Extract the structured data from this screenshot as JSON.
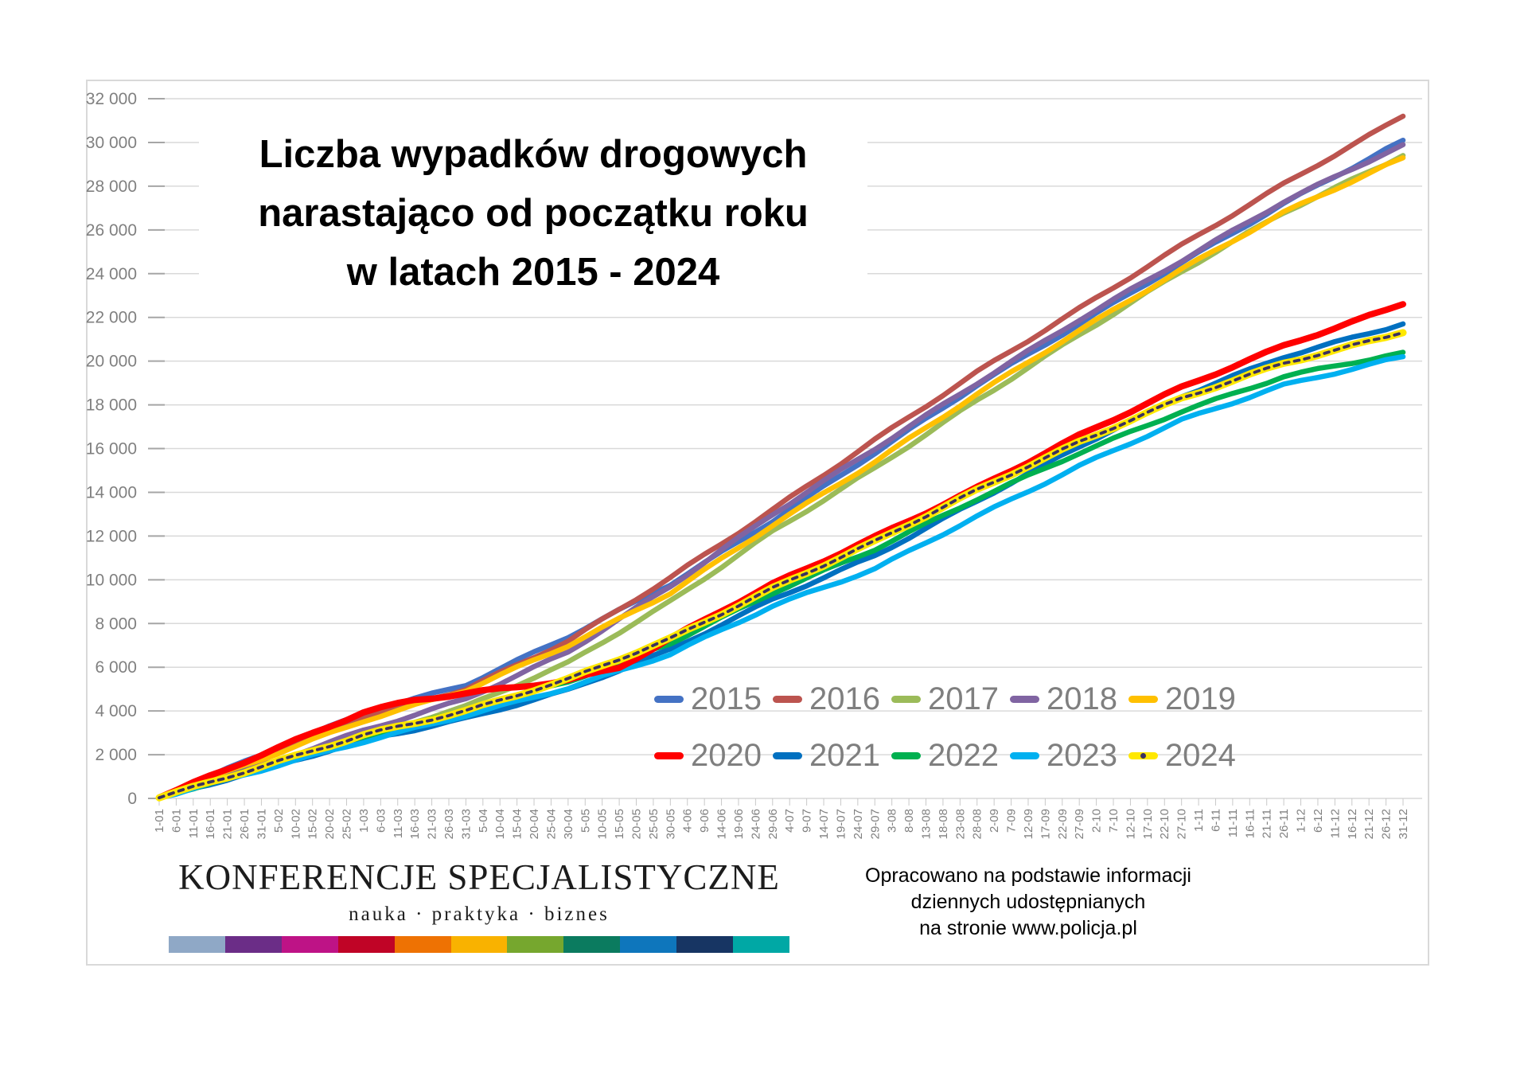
{
  "title": {
    "lines": [
      "Liczba wypadków drogowych",
      "narastająco od początku roku",
      "w latach 2015 - 2024"
    ]
  },
  "footer": {
    "logo": {
      "name": "KONFERENCJE SPECJALISTYCZNE",
      "tagline": "nauka · praktyka · biznes",
      "stripe_colors": [
        "#8FA8C6",
        "#6B2D87",
        "#BE1386",
        "#C00426",
        "#EE7203",
        "#F9B200",
        "#76A72E",
        "#0B7B5F",
        "#0E76BC",
        "#173563",
        "#00A8A5"
      ]
    },
    "attribution": {
      "lines": [
        "Opracowano na podstawie informacji",
        "dziennych udostępnianych",
        "na stronie www.policja.pl"
      ]
    }
  },
  "colors": {
    "grid": "#D9D9D9",
    "tick_stub": "#A6A6A6",
    "axis_text": "#808080",
    "legend_text": "#7F7F7F",
    "frame": "#D9D9D9"
  },
  "chart_data": {
    "type": "line",
    "title": "Liczba wypadków drogowych narastająco od początku roku w latach 2015 - 2024",
    "xlabel": "",
    "ylabel": "",
    "ylim": [
      0,
      32000
    ],
    "ytick_step": 2000,
    "y_tick_labels": [
      "0",
      "2 000",
      "4 000",
      "6 000",
      "8 000",
      "10 000",
      "12 000",
      "14 000",
      "16 000",
      "18 000",
      "20 000",
      "22 000",
      "24 000",
      "26 000",
      "28 000",
      "30 000",
      "32 000"
    ],
    "grid": "horizontal",
    "x_label_rotation": -90,
    "legend_position": "inside bottom-right, two rows",
    "categories": [
      "1-01",
      "6-01",
      "11-01",
      "16-01",
      "21-01",
      "26-01",
      "31-01",
      "5-02",
      "10-02",
      "15-02",
      "20-02",
      "25-02",
      "1-03",
      "6-03",
      "11-03",
      "16-03",
      "21-03",
      "26-03",
      "31-03",
      "5-04",
      "10-04",
      "15-04",
      "20-04",
      "25-04",
      "30-04",
      "5-05",
      "10-05",
      "15-05",
      "20-05",
      "25-05",
      "30-05",
      "4-06",
      "9-06",
      "14-06",
      "19-06",
      "24-06",
      "29-06",
      "4-07",
      "9-07",
      "14-07",
      "19-07",
      "24-07",
      "29-07",
      "3-08",
      "8-08",
      "13-08",
      "18-08",
      "23-08",
      "28-08",
      "2-09",
      "7-09",
      "12-09",
      "17-09",
      "22-09",
      "27-09",
      "2-10",
      "7-10",
      "12-10",
      "17-10",
      "22-10",
      "27-10",
      "1-11",
      "6-11",
      "11-11",
      "16-11",
      "21-11",
      "26-11",
      "1-12",
      "6-12",
      "11-12",
      "16-12",
      "21-12",
      "26-12",
      "31-12"
    ],
    "note": "anchor_points are [category_index, cumulative_value] pairs read off the chart; values between anchors are linear on the plot",
    "series": [
      {
        "name": "2015",
        "color": "#4472C4",
        "width": 6.5,
        "anchor_points": [
          [
            0,
            30
          ],
          [
            6,
            2000
          ],
          [
            12,
            3900
          ],
          [
            18,
            5200
          ],
          [
            24,
            7400
          ],
          [
            30,
            9800
          ],
          [
            36,
            12700
          ],
          [
            42,
            15800
          ],
          [
            48,
            18900
          ],
          [
            54,
            21700
          ],
          [
            60,
            24500
          ],
          [
            66,
            27200
          ],
          [
            73,
            30100
          ]
        ]
      },
      {
        "name": "2016",
        "color": "#BC544F",
        "width": 6.5,
        "anchor_points": [
          [
            0,
            30
          ],
          [
            6,
            1900
          ],
          [
            12,
            3750
          ],
          [
            18,
            5000
          ],
          [
            24,
            7200
          ],
          [
            30,
            10100
          ],
          [
            36,
            13200
          ],
          [
            42,
            16400
          ],
          [
            48,
            19500
          ],
          [
            54,
            22400
          ],
          [
            60,
            25300
          ],
          [
            66,
            28100
          ],
          [
            73,
            31200
          ]
        ]
      },
      {
        "name": "2017",
        "color": "#9BBB59",
        "width": 6.5,
        "anchor_points": [
          [
            0,
            25
          ],
          [
            6,
            1400
          ],
          [
            12,
            2850
          ],
          [
            18,
            4200
          ],
          [
            24,
            6200
          ],
          [
            30,
            9000
          ],
          [
            36,
            12200
          ],
          [
            42,
            15100
          ],
          [
            48,
            18200
          ],
          [
            54,
            21200
          ],
          [
            60,
            24100
          ],
          [
            66,
            26800
          ],
          [
            73,
            29400
          ]
        ]
      },
      {
        "name": "2018",
        "color": "#8064A2",
        "width": 6.5,
        "anchor_points": [
          [
            0,
            25
          ],
          [
            6,
            1500
          ],
          [
            12,
            3100
          ],
          [
            18,
            4550
          ],
          [
            24,
            6700
          ],
          [
            30,
            9700
          ],
          [
            36,
            13000
          ],
          [
            42,
            16000
          ],
          [
            48,
            19000
          ],
          [
            54,
            21900
          ],
          [
            60,
            24600
          ],
          [
            66,
            27300
          ],
          [
            73,
            29900
          ]
        ]
      },
      {
        "name": "2019",
        "color": "#FFC000",
        "width": 6.5,
        "anchor_points": [
          [
            0,
            30
          ],
          [
            6,
            1800
          ],
          [
            12,
            3550
          ],
          [
            18,
            4950
          ],
          [
            24,
            7000
          ],
          [
            30,
            9400
          ],
          [
            36,
            12500
          ],
          [
            42,
            15400
          ],
          [
            48,
            18500
          ],
          [
            54,
            21400
          ],
          [
            60,
            24200
          ],
          [
            66,
            26800
          ],
          [
            73,
            29300
          ]
        ]
      },
      {
        "name": "2020",
        "color": "#FF0000",
        "width": 8,
        "anchor_points": [
          [
            0,
            40
          ],
          [
            6,
            2000
          ],
          [
            12,
            3950
          ],
          [
            15,
            4500
          ],
          [
            18,
            4800
          ],
          [
            21,
            5100
          ],
          [
            24,
            5400
          ],
          [
            27,
            6000
          ],
          [
            30,
            7300
          ],
          [
            33,
            8600
          ],
          [
            36,
            9800
          ],
          [
            42,
            11950
          ],
          [
            48,
            14200
          ],
          [
            54,
            16600
          ],
          [
            60,
            18800
          ],
          [
            66,
            20700
          ],
          [
            73,
            22600
          ]
        ]
      },
      {
        "name": "2021",
        "color": "#0070C0",
        "width": 6.5,
        "anchor_points": [
          [
            0,
            25
          ],
          [
            6,
            1300
          ],
          [
            12,
            2650
          ],
          [
            18,
            3650
          ],
          [
            24,
            4950
          ],
          [
            30,
            6800
          ],
          [
            36,
            9100
          ],
          [
            42,
            11100
          ],
          [
            48,
            13600
          ],
          [
            54,
            16100
          ],
          [
            60,
            18400
          ],
          [
            66,
            20200
          ],
          [
            73,
            21700
          ]
        ]
      },
      {
        "name": "2022",
        "color": "#00B050",
        "width": 6.5,
        "anchor_points": [
          [
            0,
            25
          ],
          [
            6,
            1400
          ],
          [
            12,
            2800
          ],
          [
            18,
            4000
          ],
          [
            24,
            5350
          ],
          [
            30,
            7100
          ],
          [
            36,
            9400
          ],
          [
            42,
            11400
          ],
          [
            48,
            13700
          ],
          [
            54,
            15800
          ],
          [
            60,
            17700
          ],
          [
            66,
            19300
          ],
          [
            73,
            20400
          ]
        ]
      },
      {
        "name": "2023",
        "color": "#00B0F0",
        "width": 6.5,
        "anchor_points": [
          [
            0,
            25
          ],
          [
            6,
            1300
          ],
          [
            12,
            2600
          ],
          [
            18,
            3800
          ],
          [
            24,
            5050
          ],
          [
            30,
            6600
          ],
          [
            36,
            8800
          ],
          [
            42,
            10500
          ],
          [
            48,
            12900
          ],
          [
            54,
            15200
          ],
          [
            60,
            17300
          ],
          [
            66,
            18900
          ],
          [
            73,
            20200
          ]
        ]
      },
      {
        "name": "2024",
        "color": "#FFE800",
        "core_color": "#3B3160",
        "style": "yellow line with dark dashed core",
        "width": 9,
        "anchor_points": [
          [
            0,
            30
          ],
          [
            6,
            1450
          ],
          [
            12,
            2900
          ],
          [
            18,
            4000
          ],
          [
            24,
            5450
          ],
          [
            30,
            7300
          ],
          [
            36,
            9600
          ],
          [
            42,
            11750
          ],
          [
            48,
            14100
          ],
          [
            54,
            16300
          ],
          [
            60,
            18300
          ],
          [
            66,
            19900
          ],
          [
            73,
            21300
          ]
        ]
      }
    ]
  }
}
